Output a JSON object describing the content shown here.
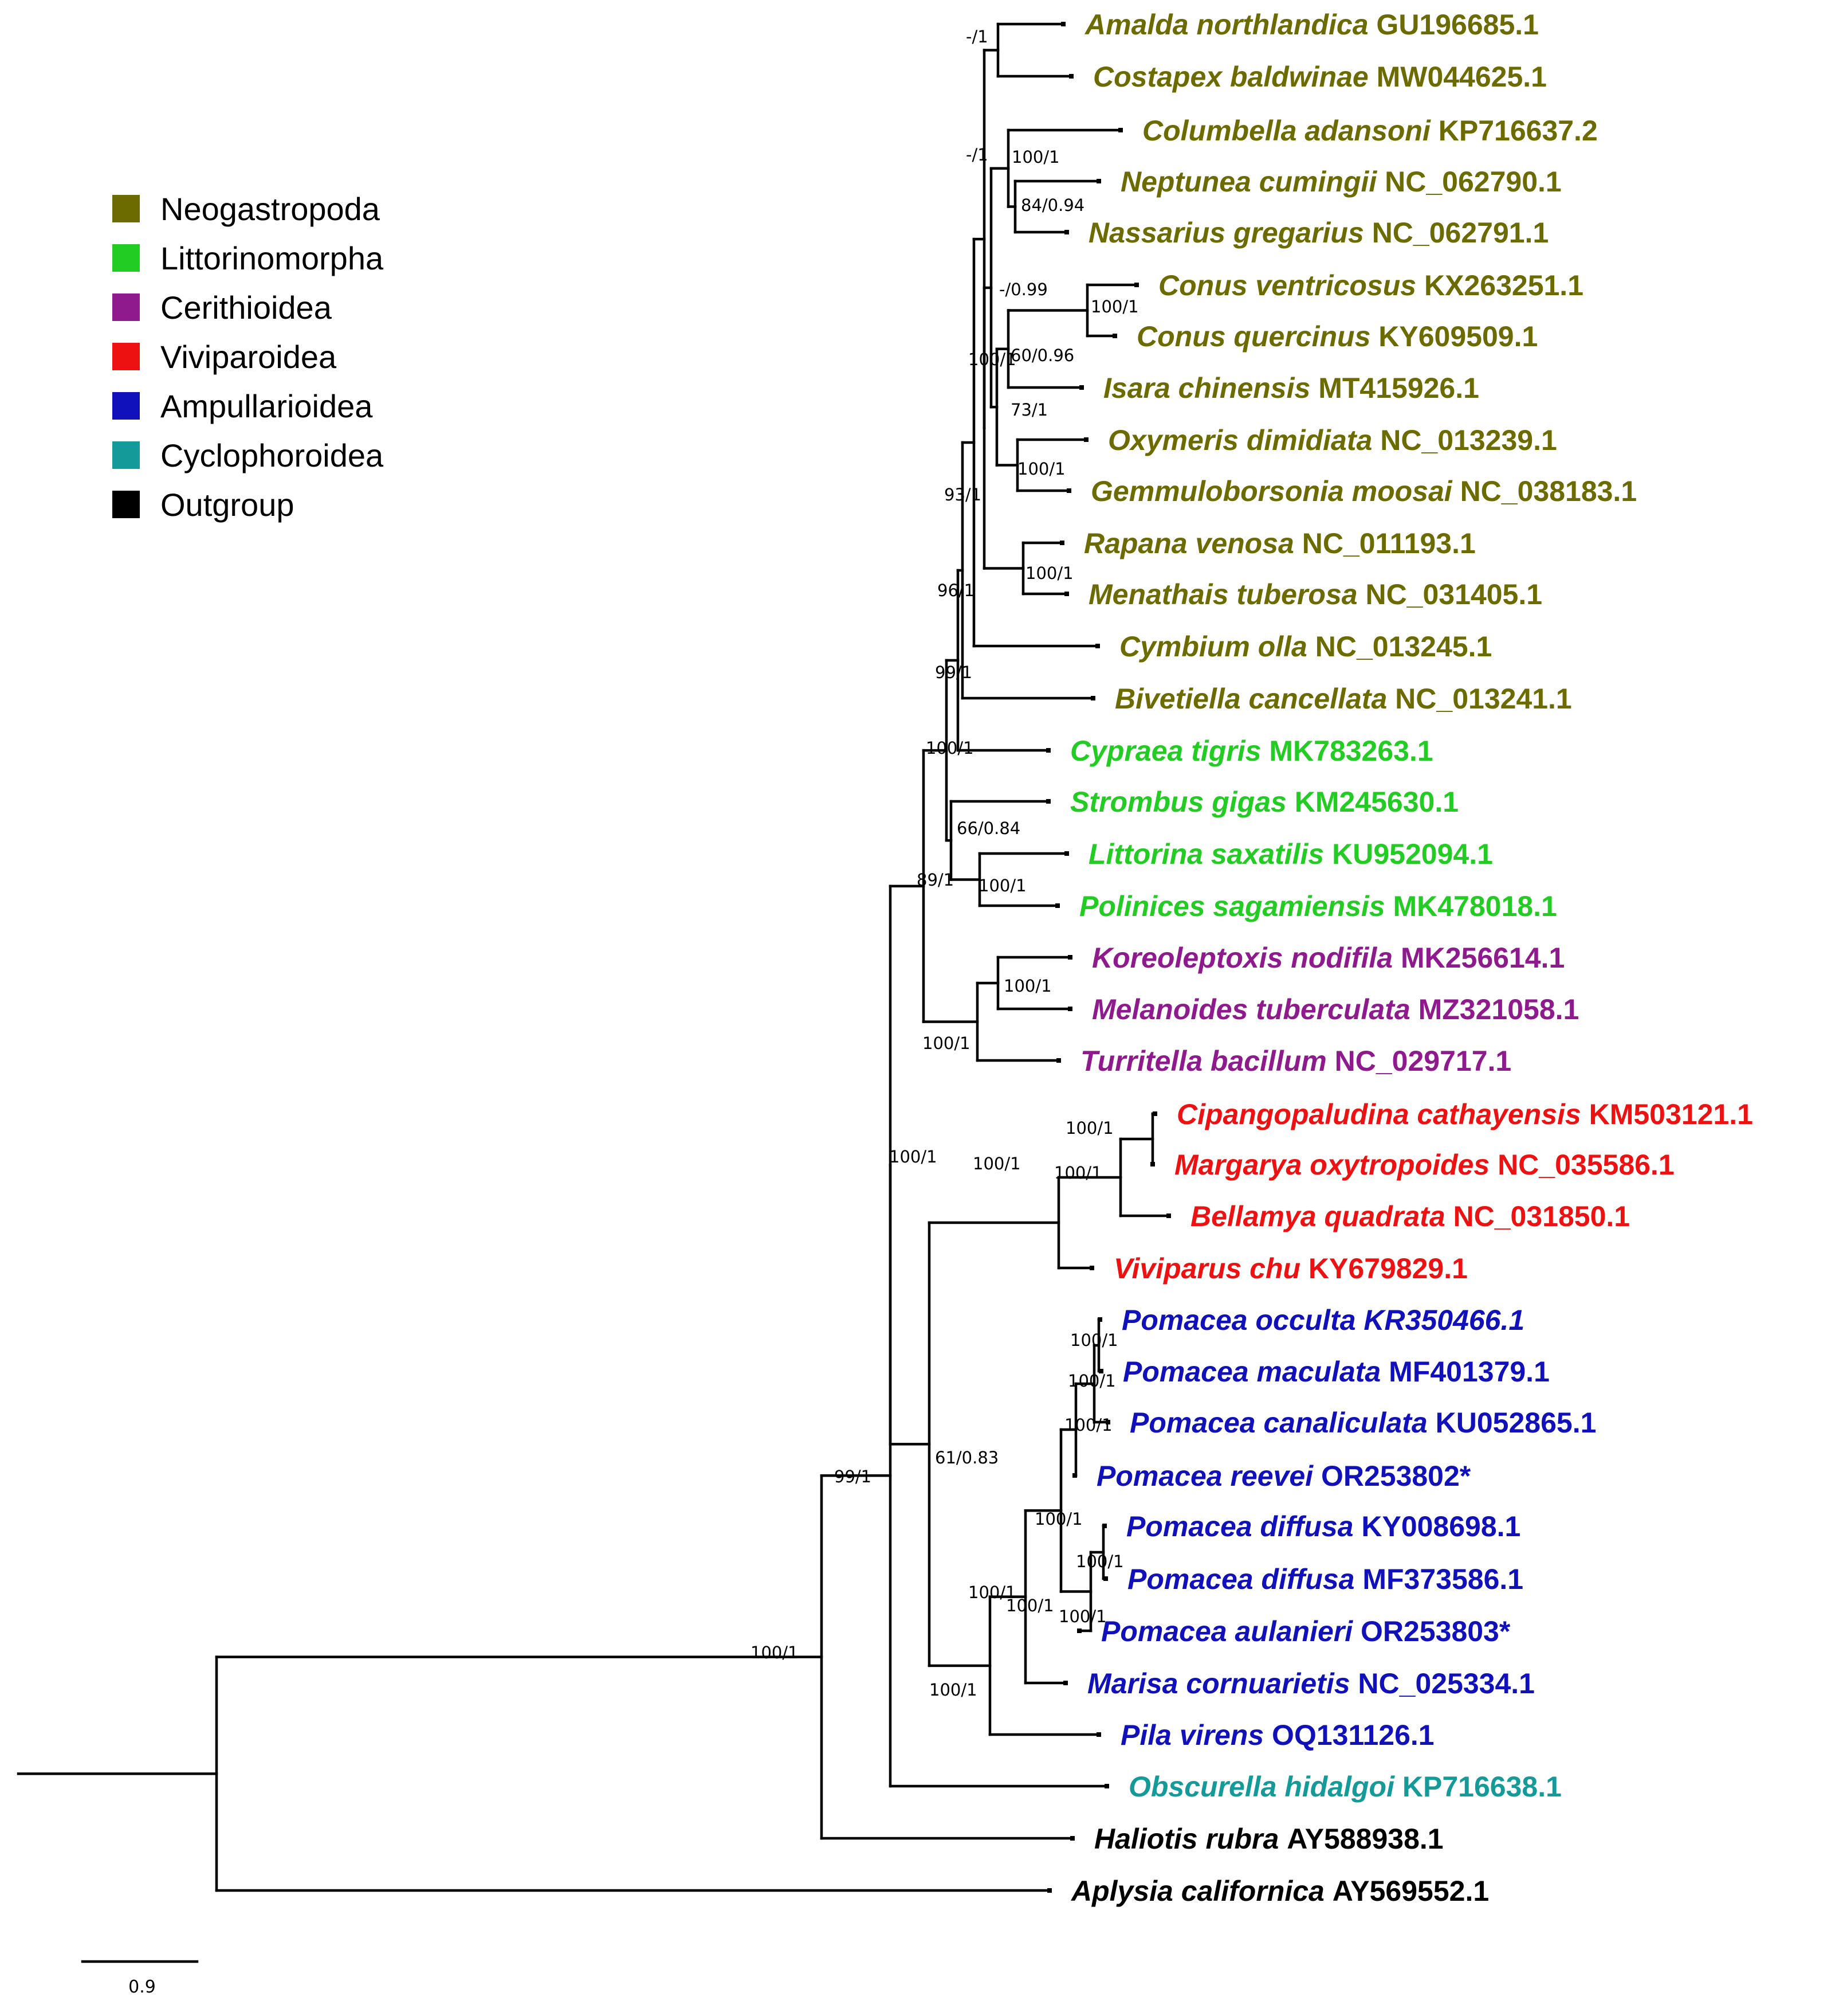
{
  "legend": {
    "items": [
      {
        "label": "Neogastropoda",
        "color": "#6b6b00"
      },
      {
        "label": "Littorinomorpha",
        "color": "#22cc22"
      },
      {
        "label": "Cerithioidea",
        "color": "#8e1a8e"
      },
      {
        "label": "Viviparoidea",
        "color": "#ee1111"
      },
      {
        "label": "Ampullarioidea",
        "color": "#1111bb"
      },
      {
        "label": "Cyclophoroidea",
        "color": "#159a9a"
      },
      {
        "label": "Outgroup",
        "color": "#000000"
      }
    ]
  },
  "scale_bar": {
    "label": "0.9"
  },
  "tips": [
    {
      "name": "Amalda northlandica",
      "accession": "GU196685.1",
      "group": "Neogastropoda"
    },
    {
      "name": "Costapex baldwinae",
      "accession": "MW044625.1",
      "group": "Neogastropoda"
    },
    {
      "name": "Columbella adansoni",
      "accession": "KP716637.2",
      "group": "Neogastropoda"
    },
    {
      "name": "Neptunea cumingii",
      "accession": "NC_062790.1",
      "group": "Neogastropoda"
    },
    {
      "name": "Nassarius gregarius",
      "accession": "NC_062791.1",
      "group": "Neogastropoda"
    },
    {
      "name": "Conus ventricosus",
      "accession": "KX263251.1",
      "group": "Neogastropoda"
    },
    {
      "name": "Conus quercinus",
      "accession": "KY609509.1",
      "group": "Neogastropoda"
    },
    {
      "name": "Isara chinensis",
      "accession": "MT415926.1",
      "group": "Neogastropoda"
    },
    {
      "name": "Oxymeris dimidiata",
      "accession": "NC_013239.1",
      "group": "Neogastropoda"
    },
    {
      "name": "Gemmuloborsonia moosai",
      "accession": "NC_038183.1",
      "group": "Neogastropoda"
    },
    {
      "name": "Rapana venosa",
      "accession": "NC_011193.1",
      "group": "Neogastropoda"
    },
    {
      "name": "Menathais tuberosa",
      "accession": "NC_031405.1",
      "group": "Neogastropoda"
    },
    {
      "name": "Cymbium olla",
      "accession": "NC_013245.1",
      "group": "Neogastropoda"
    },
    {
      "name": "Bivetiella cancellata",
      "accession": "NC_013241.1",
      "group": "Neogastropoda"
    },
    {
      "name": "Cypraea tigris",
      "accession": "MK783263.1",
      "group": "Littorinomorpha"
    },
    {
      "name": "Strombus gigas",
      "accession": "KM245630.1",
      "group": "Littorinomorpha"
    },
    {
      "name": "Littorina saxatilis",
      "accession": "KU952094.1",
      "group": "Littorinomorpha"
    },
    {
      "name": "Polinices sagamiensis",
      "accession": "MK478018.1",
      "group": "Littorinomorpha"
    },
    {
      "name": "Koreoleptoxis nodifila",
      "accession": "MK256614.1",
      "group": "Cerithioidea"
    },
    {
      "name": "Melanoides tuberculata",
      "accession": "MZ321058.1",
      "group": "Cerithioidea"
    },
    {
      "name": "Turritella bacillum",
      "accession": "NC_029717.1",
      "group": "Cerithioidea"
    },
    {
      "name": "Cipangopaludina cathayensis",
      "accession": "KM503121.1",
      "group": "Viviparoidea"
    },
    {
      "name": "Margarya oxytropoides",
      "accession": "NC_035586.1",
      "group": "Viviparoidea"
    },
    {
      "name": "Bellamya quadrata",
      "accession": "NC_031850.1",
      "group": "Viviparoidea"
    },
    {
      "name": "Viviparus chu",
      "accession": "KY679829.1",
      "group": "Viviparoidea"
    },
    {
      "name": "Pomacea occulta",
      "accession": "KR350466.1",
      "group": "Ampullarioidea",
      "accession_italic": true
    },
    {
      "name": "Pomacea maculata",
      "accession": "MF401379.1",
      "group": "Ampullarioidea"
    },
    {
      "name": "Pomacea canaliculata",
      "accession": "KU052865.1",
      "group": "Ampullarioidea"
    },
    {
      "name": "Pomacea reevei",
      "accession": "OR253802*",
      "group": "Ampullarioidea"
    },
    {
      "name": "Pomacea diffusa",
      "accession": "KY008698.1",
      "group": "Ampullarioidea"
    },
    {
      "name": "Pomacea diffusa",
      "accession": "MF373586.1",
      "group": "Ampullarioidea"
    },
    {
      "name": "Pomacea aulanieri",
      "accession": "OR253803*",
      "group": "Ampullarioidea"
    },
    {
      "name": "Marisa cornuarietis",
      "accession": "NC_025334.1",
      "group": "Ampullarioidea"
    },
    {
      "name": "Pila virens",
      "accession": "OQ131126.1",
      "group": "Ampullarioidea"
    },
    {
      "name": "Obscurella hidalgoi",
      "accession": "KP716638.1",
      "group": "Cyclophoroidea"
    },
    {
      "name": "Haliotis rubra",
      "accession": "AY588938.1",
      "group": "Outgroup"
    },
    {
      "name": "Aplysia californica",
      "accession": "AY569552.1",
      "group": "Outgroup"
    }
  ],
  "support_values": [
    "-/1",
    "-/1",
    "100/1",
    "84/0.94",
    "-/0.99",
    "100/1",
    "60/0.96",
    "73/1",
    "100/1",
    "100/1",
    "100/1",
    "93/1",
    "96/1",
    "99/1",
    "100/1",
    "66/0.84",
    "100/1",
    "89/1",
    "100/1",
    "100/1",
    "100/1",
    "100/1",
    "100/1",
    "100/1",
    "100/1",
    "100/1",
    "100/1",
    "61/0.83",
    "100/1",
    "100/1",
    "100/1",
    "100/1",
    "100/1",
    "100/1",
    "99/1",
    "100/1"
  ]
}
